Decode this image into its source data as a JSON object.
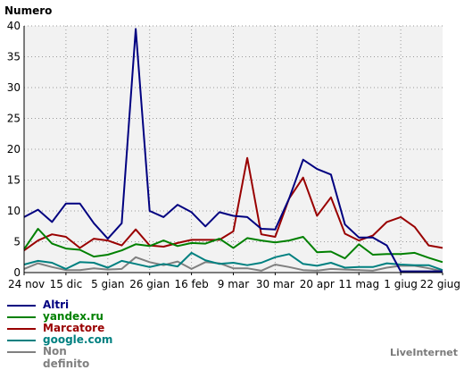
{
  "chart_data": {
    "type": "line",
    "title": "Numero",
    "xlabel": "",
    "ylabel": "Numero",
    "ylim": [
      0,
      40
    ],
    "yticks": [
      0,
      5,
      10,
      15,
      20,
      25,
      30,
      35,
      40
    ],
    "xtick_labels": [
      "24 nov",
      "15 dic",
      "5 gian",
      "26 gian",
      "16 feb",
      "9 mar",
      "30 mar",
      "20 apr",
      "11 mag",
      "1 giug",
      "22 giug"
    ],
    "grid": true,
    "legend_position": "bottom-left",
    "x": [
      "24 nov",
      "1 dic",
      "8 dic",
      "15 dic",
      "22 dic",
      "29 dic",
      "5 gian",
      "12 gian",
      "19 gian",
      "26 gian",
      "2 feb",
      "9 feb",
      "16 feb",
      "23 feb",
      "2 mar",
      "9 mar",
      "16 mar",
      "23 mar",
      "30 mar",
      "6 apr",
      "13 apr",
      "20 apr",
      "27 apr",
      "4 mag",
      "11 mag",
      "18 mag",
      "25 mag",
      "1 giug",
      "8 giug",
      "15 giug",
      "22 giug"
    ],
    "series": [
      {
        "name": "Altri",
        "color": "#000080",
        "values": [
          9,
          10.2,
          8.2,
          11.2,
          11.2,
          8,
          5.5,
          8,
          39.5,
          10,
          9,
          11,
          9.8,
          7.5,
          9.8,
          9.2,
          9,
          7.1,
          7,
          12,
          18.3,
          16.8,
          15.9,
          7.8,
          5.7,
          5.7,
          4.4,
          0.2,
          0.2,
          0.2,
          0.2
        ]
      },
      {
        "name": "yandex.ru",
        "color": "#008000",
        "values": [
          3.8,
          7.1,
          4.7,
          3.9,
          3.7,
          2.6,
          2.9,
          3.6,
          4.6,
          4.3,
          5.2,
          4.3,
          4.8,
          4.7,
          5.5,
          4,
          5.6,
          5.2,
          4.9,
          5.2,
          5.8,
          3.3,
          3.4,
          2.3,
          4.6,
          2.9,
          3,
          3,
          3.2,
          2.4,
          1.7
        ]
      },
      {
        "name": "Marcatore",
        "color": "#990000",
        "values": [
          3.6,
          5.2,
          6.2,
          5.8,
          4,
          5.5,
          5.2,
          4.4,
          7,
          4.4,
          4.2,
          4.8,
          5.3,
          5.3,
          5.3,
          6.7,
          18.6,
          6.2,
          5.8,
          12,
          15.4,
          9.2,
          12.2,
          6.3,
          5.2,
          6,
          8.2,
          9,
          7.4,
          4.4,
          4
        ]
      },
      {
        "name": "google.com",
        "color": "#008080",
        "values": [
          1.3,
          1.9,
          1.6,
          0.6,
          1.7,
          1.6,
          0.8,
          1.9,
          1.4,
          0.9,
          1.4,
          1,
          3.2,
          2,
          1.4,
          1.6,
          1.2,
          1.6,
          2.5,
          3,
          1.4,
          1.1,
          1.6,
          0.8,
          0.9,
          0.9,
          1.5,
          1.3,
          1.2,
          1.2,
          0.4
        ]
      },
      {
        "name": "Non definito",
        "color": "#808080",
        "values": [
          0.6,
          1.5,
          0.9,
          0.4,
          0.4,
          0.7,
          0.5,
          0.6,
          2.5,
          1.7,
          1.2,
          1.8,
          0.6,
          1.7,
          1.5,
          0.7,
          0.7,
          0.3,
          1.3,
          0.9,
          0.4,
          0.3,
          0.6,
          0.5,
          0.4,
          0.3,
          0.8,
          1.1,
          1.1,
          0.7,
          0.2
        ]
      }
    ]
  },
  "branding": {
    "text": "LiveInternet"
  }
}
